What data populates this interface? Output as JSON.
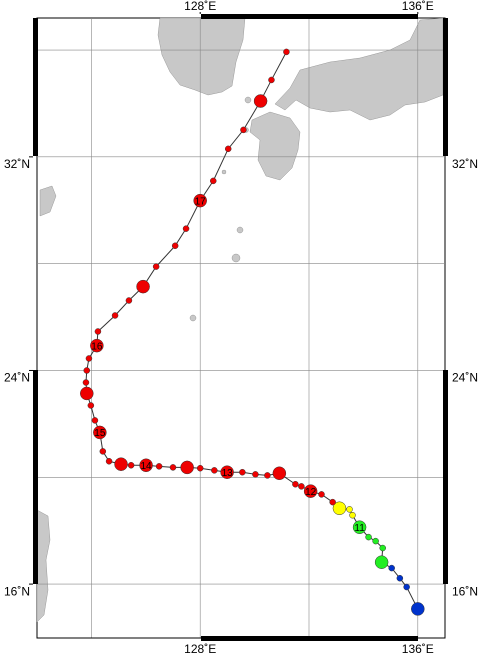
{
  "map": {
    "lonlim": [
      122,
      137
    ],
    "latlim": [
      14,
      37.2
    ],
    "grid_lon": [
      124,
      128,
      132,
      136
    ],
    "grid_lat": [
      16,
      20,
      24,
      28,
      32,
      36
    ],
    "lon_ticks": [
      {
        "value": 128,
        "label": "128˚E"
      },
      {
        "value": 136,
        "label": "136˚E"
      }
    ],
    "lat_ticks": [
      {
        "value": 32,
        "label": "32˚N"
      },
      {
        "value": 24,
        "label": "24˚N"
      },
      {
        "value": 16,
        "label": "16˚N"
      }
    ],
    "land_color": "#c8c8c8",
    "track_color": "#333333"
  },
  "track": {
    "points": [
      {
        "lon": 136.0,
        "lat": 15.07,
        "size": "big",
        "color": "#0033cc"
      },
      {
        "lon": 135.59,
        "lat": 15.89,
        "size": "small",
        "color": "#0033cc"
      },
      {
        "lon": 135.34,
        "lat": 16.22,
        "size": "small",
        "color": "#0033cc"
      },
      {
        "lon": 135.04,
        "lat": 16.6,
        "size": "small",
        "color": "#0033cc"
      },
      {
        "lon": 134.67,
        "lat": 16.82,
        "size": "big",
        "color": "#22ee22"
      },
      {
        "lon": 134.71,
        "lat": 17.35,
        "size": "small",
        "color": "#22ee22"
      },
      {
        "lon": 134.45,
        "lat": 17.61,
        "size": "small",
        "color": "#22ee22"
      },
      {
        "lon": 134.19,
        "lat": 17.76,
        "size": "small",
        "color": "#22ee22"
      },
      {
        "lon": 133.86,
        "lat": 18.13,
        "size": "big",
        "color": "#22ee22",
        "label": "11"
      },
      {
        "lon": 133.6,
        "lat": 18.58,
        "size": "small",
        "color": "#ffff00"
      },
      {
        "lon": 133.49,
        "lat": 18.8,
        "size": "small",
        "color": "#ffff00"
      },
      {
        "lon": 133.12,
        "lat": 18.84,
        "size": "big",
        "color": "#ffff00"
      },
      {
        "lon": 132.87,
        "lat": 19.07,
        "size": "small",
        "color": "#ee0000"
      },
      {
        "lon": 132.46,
        "lat": 19.36,
        "size": "small",
        "color": "#ee0000"
      },
      {
        "lon": 132.06,
        "lat": 19.48,
        "size": "big",
        "color": "#ee0000",
        "label": "12"
      },
      {
        "lon": 131.72,
        "lat": 19.66,
        "size": "small",
        "color": "#ee0000"
      },
      {
        "lon": 131.5,
        "lat": 19.74,
        "size": "small",
        "color": "#ee0000"
      },
      {
        "lon": 130.91,
        "lat": 20.15,
        "size": "big",
        "color": "#ee0000"
      },
      {
        "lon": 130.47,
        "lat": 20.07,
        "size": "small",
        "color": "#ee0000"
      },
      {
        "lon": 130.03,
        "lat": 20.11,
        "size": "small",
        "color": "#ee0000"
      },
      {
        "lon": 129.55,
        "lat": 20.19,
        "size": "small",
        "color": "#ee0000"
      },
      {
        "lon": 128.99,
        "lat": 20.19,
        "size": "big",
        "color": "#ee0000",
        "label": "13"
      },
      {
        "lon": 128.52,
        "lat": 20.26,
        "size": "small",
        "color": "#ee0000"
      },
      {
        "lon": 128.0,
        "lat": 20.34,
        "size": "small",
        "color": "#ee0000"
      },
      {
        "lon": 127.52,
        "lat": 20.37,
        "size": "big",
        "color": "#ee0000"
      },
      {
        "lon": 127.0,
        "lat": 20.37,
        "size": "small",
        "color": "#ee0000"
      },
      {
        "lon": 126.49,
        "lat": 20.41,
        "size": "small",
        "color": "#ee0000"
      },
      {
        "lon": 126.01,
        "lat": 20.45,
        "size": "big",
        "color": "#ee0000",
        "label": "14"
      },
      {
        "lon": 125.46,
        "lat": 20.45,
        "size": "small",
        "color": "#ee0000"
      },
      {
        "lon": 125.09,
        "lat": 20.49,
        "size": "big",
        "color": "#ee0000"
      },
      {
        "lon": 124.65,
        "lat": 20.6,
        "size": "small",
        "color": "#ee0000"
      },
      {
        "lon": 124.42,
        "lat": 20.97,
        "size": "small",
        "color": "#ee0000"
      },
      {
        "lon": 124.31,
        "lat": 21.68,
        "size": "big",
        "color": "#ee0000",
        "label": "15"
      },
      {
        "lon": 124.13,
        "lat": 22.13,
        "size": "small",
        "color": "#ee0000"
      },
      {
        "lon": 123.98,
        "lat": 22.69,
        "size": "small",
        "color": "#ee0000"
      },
      {
        "lon": 123.83,
        "lat": 23.14,
        "size": "big",
        "color": "#ee0000"
      },
      {
        "lon": 123.8,
        "lat": 23.55,
        "size": "small",
        "color": "#ee0000"
      },
      {
        "lon": 123.83,
        "lat": 24.0,
        "size": "small",
        "color": "#ee0000"
      },
      {
        "lon": 123.91,
        "lat": 24.45,
        "size": "small",
        "color": "#ee0000"
      },
      {
        "lon": 124.2,
        "lat": 24.93,
        "size": "big",
        "color": "#ee0000",
        "label": "16"
      },
      {
        "lon": 124.24,
        "lat": 25.46,
        "size": "small",
        "color": "#ee0000"
      },
      {
        "lon": 124.87,
        "lat": 26.06,
        "size": "small",
        "color": "#ee0000"
      },
      {
        "lon": 125.38,
        "lat": 26.62,
        "size": "small",
        "color": "#ee0000"
      },
      {
        "lon": 125.9,
        "lat": 27.14,
        "size": "big",
        "color": "#ee0000"
      },
      {
        "lon": 126.38,
        "lat": 27.89,
        "size": "small",
        "color": "#ee0000"
      },
      {
        "lon": 127.08,
        "lat": 28.67,
        "size": "small",
        "color": "#ee0000"
      },
      {
        "lon": 127.48,
        "lat": 29.31,
        "size": "small",
        "color": "#ee0000"
      },
      {
        "lon": 128.0,
        "lat": 30.36,
        "size": "big",
        "color": "#ee0000",
        "label": "17"
      },
      {
        "lon": 128.48,
        "lat": 31.1,
        "size": "small",
        "color": "#ee0000"
      },
      {
        "lon": 129.03,
        "lat": 32.3,
        "size": "small",
        "color": "#ee0000"
      },
      {
        "lon": 129.59,
        "lat": 33.01,
        "size": "small",
        "color": "#ee0000"
      },
      {
        "lon": 130.22,
        "lat": 34.09,
        "size": "big",
        "color": "#ee0000"
      },
      {
        "lon": 130.62,
        "lat": 34.88,
        "size": "small",
        "color": "#ee0000"
      },
      {
        "lon": 131.17,
        "lat": 35.93,
        "size": "small",
        "color": "#ee0000"
      }
    ]
  }
}
